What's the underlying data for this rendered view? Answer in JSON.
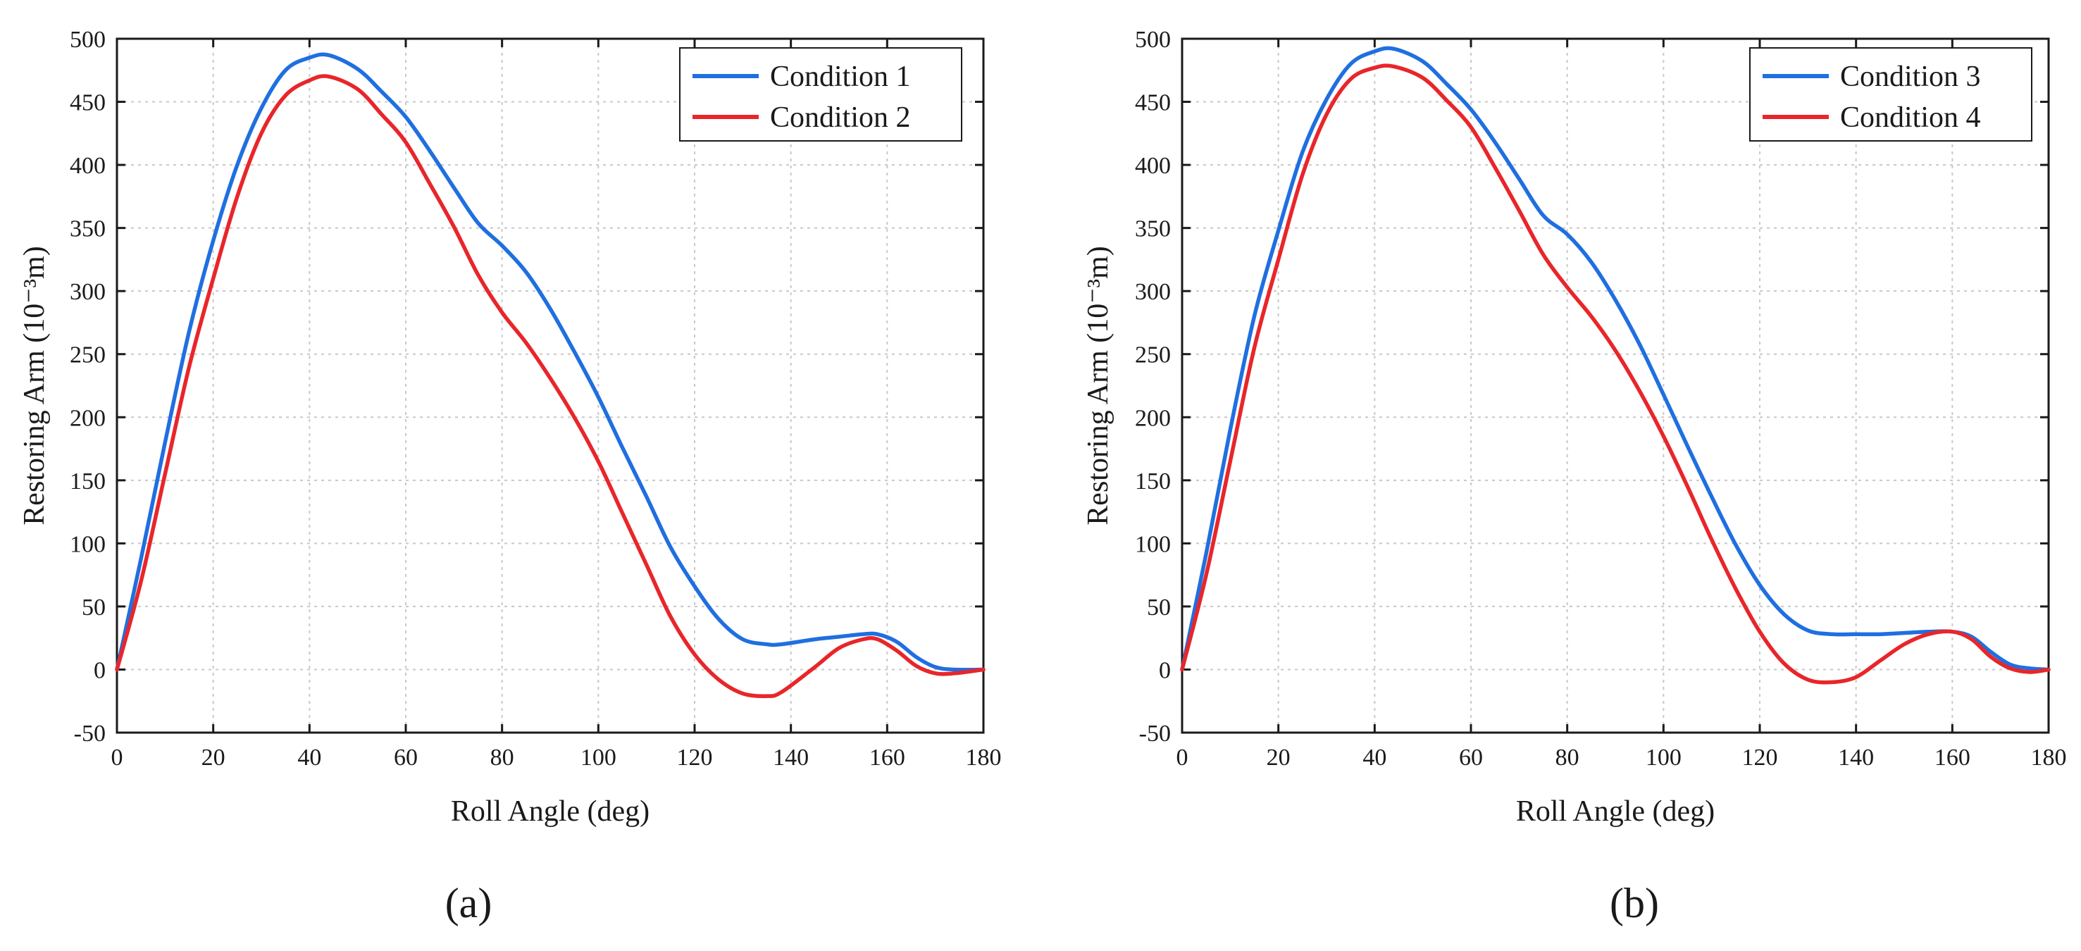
{
  "chart_data": [
    {
      "type": "line",
      "panel_caption": "(a)",
      "xlabel": "Roll Angle (deg)",
      "ylabel": "Restoring Arm (10⁻³m)",
      "xlim": [
        0,
        180
      ],
      "ylim": [
        -50,
        500
      ],
      "xticks": [
        0,
        20,
        40,
        60,
        80,
        100,
        120,
        140,
        160,
        180
      ],
      "yticks": [
        -50,
        0,
        50,
        100,
        150,
        200,
        250,
        300,
        350,
        400,
        450,
        500
      ],
      "grid": true,
      "legend_position": "top-right",
      "x": [
        0,
        5,
        10,
        15,
        20,
        25,
        30,
        35,
        40,
        44,
        50,
        55,
        60,
        65,
        70,
        75,
        80,
        85,
        90,
        95,
        100,
        105,
        110,
        115,
        120,
        125,
        130,
        135,
        138,
        145,
        150,
        155,
        158,
        162,
        166,
        170,
        174,
        180
      ],
      "series": [
        {
          "name": "Condition 1",
          "color": "#1f6fe0",
          "values": [
            0,
            88,
            180,
            268,
            340,
            400,
            445,
            475,
            485,
            487,
            476,
            458,
            438,
            411,
            382,
            354,
            336,
            315,
            286,
            252,
            216,
            176,
            137,
            97,
            66,
            40,
            24,
            20,
            20,
            24,
            26,
            28,
            28,
            22,
            10,
            2,
            0,
            0
          ]
        },
        {
          "name": "Condition 2",
          "color": "#e8262a",
          "values": [
            0,
            70,
            155,
            240,
            310,
            375,
            425,
            455,
            467,
            470,
            460,
            440,
            418,
            385,
            351,
            313,
            283,
            259,
            231,
            200,
            165,
            124,
            83,
            42,
            12,
            -8,
            -19,
            -21,
            -18,
            2,
            17,
            24,
            24,
            15,
            3,
            -3,
            -3,
            0
          ]
        }
      ]
    },
    {
      "type": "line",
      "panel_caption": "(b)",
      "xlabel": "Roll Angle (deg)",
      "ylabel": "Restoring Arm (10⁻³m)",
      "xlim": [
        0,
        180
      ],
      "ylim": [
        -50,
        500
      ],
      "xticks": [
        0,
        20,
        40,
        60,
        80,
        100,
        120,
        140,
        160,
        180
      ],
      "yticks": [
        -50,
        0,
        50,
        100,
        150,
        200,
        250,
        300,
        350,
        400,
        450,
        500
      ],
      "grid": true,
      "legend_position": "top-right",
      "x": [
        0,
        5,
        10,
        15,
        20,
        25,
        30,
        35,
        40,
        44,
        50,
        55,
        60,
        65,
        70,
        75,
        80,
        85,
        90,
        95,
        100,
        105,
        110,
        115,
        120,
        125,
        130,
        135,
        140,
        145,
        150,
        155,
        160,
        164,
        168,
        172,
        176,
        180
      ],
      "series": [
        {
          "name": "Condition 3",
          "color": "#1f6fe0",
          "values": [
            0,
            92,
            190,
            280,
            348,
            410,
            452,
            480,
            490,
            492,
            482,
            464,
            444,
            418,
            389,
            360,
            345,
            323,
            293,
            258,
            218,
            177,
            137,
            99,
            67,
            44,
            31,
            28,
            28,
            28,
            29,
            30,
            30,
            26,
            14,
            4,
            1,
            0
          ]
        },
        {
          "name": "Condition 4",
          "color": "#e8262a",
          "values": [
            0,
            75,
            165,
            255,
            325,
            392,
            440,
            468,
            477,
            478,
            469,
            451,
            430,
            398,
            364,
            329,
            303,
            280,
            253,
            221,
            185,
            145,
            103,
            64,
            30,
            5,
            -8,
            -10,
            -6,
            7,
            20,
            28,
            30,
            24,
            10,
            1,
            -2,
            0
          ]
        }
      ]
    }
  ]
}
